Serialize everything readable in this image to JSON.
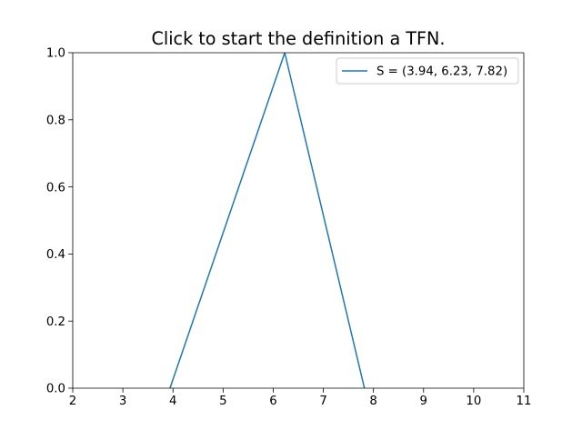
{
  "chart_data": {
    "type": "line",
    "title": "Click to start the definition a TFN.",
    "xlabel": "",
    "ylabel": "",
    "xlim": [
      2,
      11
    ],
    "ylim": [
      0.0,
      1.0
    ],
    "grid": false,
    "legend_position": "top-right",
    "xticks": [
      2,
      3,
      4,
      5,
      6,
      7,
      8,
      9,
      10,
      11
    ],
    "xtick_labels": [
      "2",
      "3",
      "4",
      "5",
      "6",
      "7",
      "8",
      "9",
      "10",
      "11"
    ],
    "yticks": [
      0.0,
      0.2,
      0.4,
      0.6,
      0.8,
      1.0
    ],
    "ytick_labels": [
      "0.0",
      "0.2",
      "0.4",
      "0.6",
      "0.8",
      "1.0"
    ],
    "series": [
      {
        "name": "S = (3.94, 6.23, 7.82)",
        "color": "#1f77b4",
        "x": [
          3.94,
          6.23,
          7.82
        ],
        "y": [
          0,
          1,
          0
        ]
      }
    ]
  }
}
